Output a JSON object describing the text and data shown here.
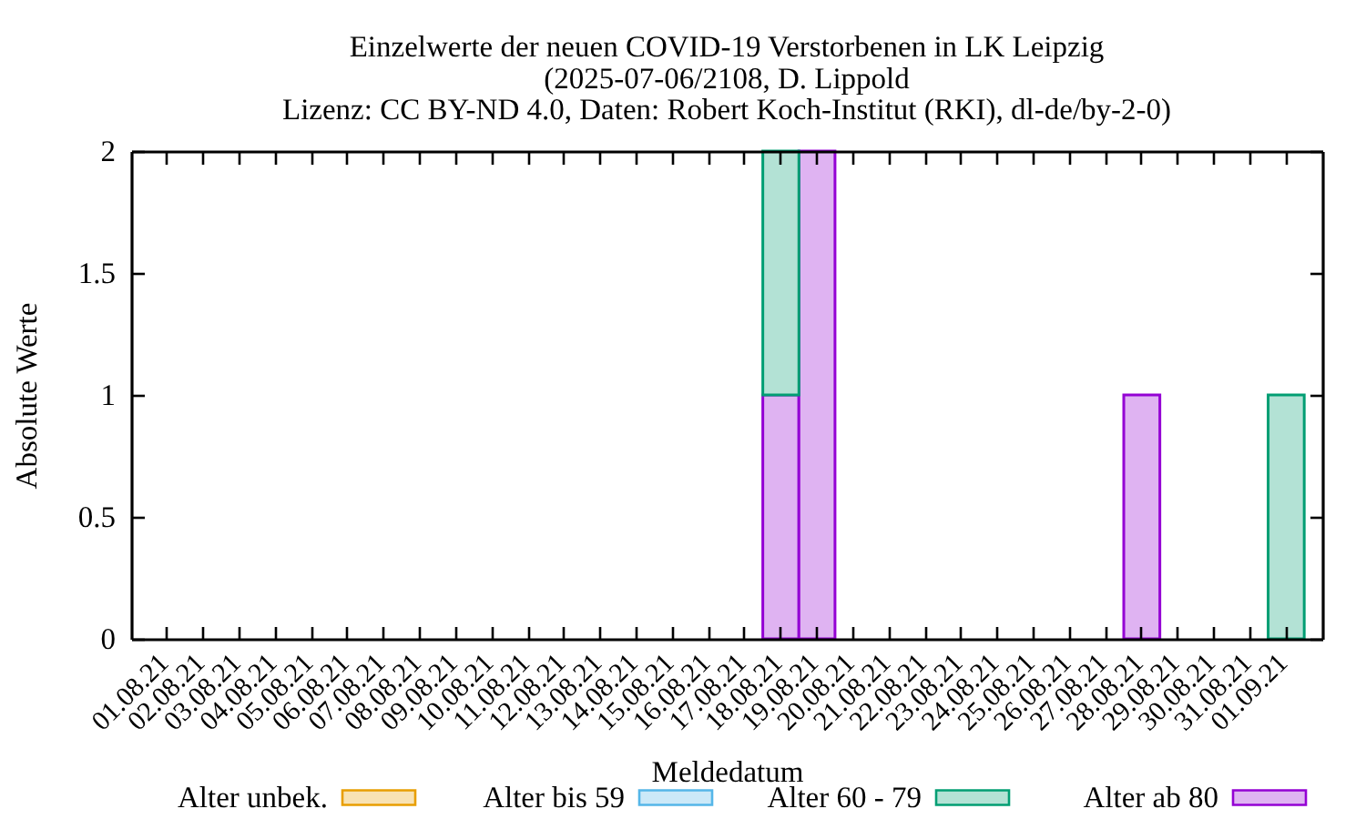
{
  "chart_data": {
    "type": "bar",
    "title": "Einzelwerte der neuen COVID-19 Verstorbenen in LK Leipzig",
    "subtitle": "(2025-07-06/2108, D. Lippold\nLizenz: CC BY-ND 4.0, Daten: Robert Koch-Institut (RKI), dl-de/by-2-0)",
    "xlabel": "Meldedatum",
    "ylabel": "Absolute Werte",
    "categories": [
      "01.08.21",
      "02.08.21",
      "03.08.21",
      "04.08.21",
      "05.08.21",
      "06.08.21",
      "07.08.21",
      "08.08.21",
      "09.08.21",
      "10.08.21",
      "11.08.21",
      "12.08.21",
      "13.08.21",
      "14.08.21",
      "15.08.21",
      "16.08.21",
      "17.08.21",
      "18.08.21",
      "19.08.21",
      "20.08.21",
      "21.08.21",
      "22.08.21",
      "23.08.21",
      "24.08.21",
      "25.08.21",
      "26.08.21",
      "27.08.21",
      "28.08.21",
      "29.08.21",
      "30.08.21",
      "31.08.21",
      "01.09.21"
    ],
    "stacked": true,
    "series": [
      {
        "name": "Alter ab 80",
        "color": "#dfb3f2",
        "values": [
          0,
          0,
          0,
          0,
          0,
          0,
          0,
          0,
          0,
          0,
          0,
          0,
          0,
          0,
          0,
          0,
          0,
          1,
          2,
          0,
          0,
          0,
          0,
          0,
          0,
          0,
          0,
          1,
          0,
          0,
          0,
          0
        ]
      },
      {
        "name": "Alter 60 - 79",
        "color": "#b3e2d5",
        "values": [
          0,
          0,
          0,
          0,
          0,
          0,
          0,
          0,
          0,
          0,
          0,
          0,
          0,
          0,
          0,
          0,
          0,
          1,
          0,
          0,
          0,
          0,
          0,
          0,
          0,
          0,
          0,
          0,
          0,
          0,
          0,
          1
        ]
      },
      {
        "name": "Alter bis 59",
        "color": "#cce9f8",
        "values": [
          0,
          0,
          0,
          0,
          0,
          0,
          0,
          0,
          0,
          0,
          0,
          0,
          0,
          0,
          0,
          0,
          0,
          0,
          0,
          0,
          0,
          0,
          0,
          0,
          0,
          0,
          0,
          0,
          0,
          0,
          0,
          0
        ]
      },
      {
        "name": "Alter unbek.",
        "color": "#f8e2b3",
        "values": [
          0,
          0,
          0,
          0,
          0,
          0,
          0,
          0,
          0,
          0,
          0,
          0,
          0,
          0,
          0,
          0,
          0,
          0,
          0,
          0,
          0,
          0,
          0,
          0,
          0,
          0,
          0,
          0,
          0,
          0,
          0,
          0
        ]
      }
    ],
    "ylim": [
      0,
      2
    ],
    "yticks": [
      0,
      0.5,
      1,
      1.5,
      2
    ],
    "legend": "bottom"
  }
}
